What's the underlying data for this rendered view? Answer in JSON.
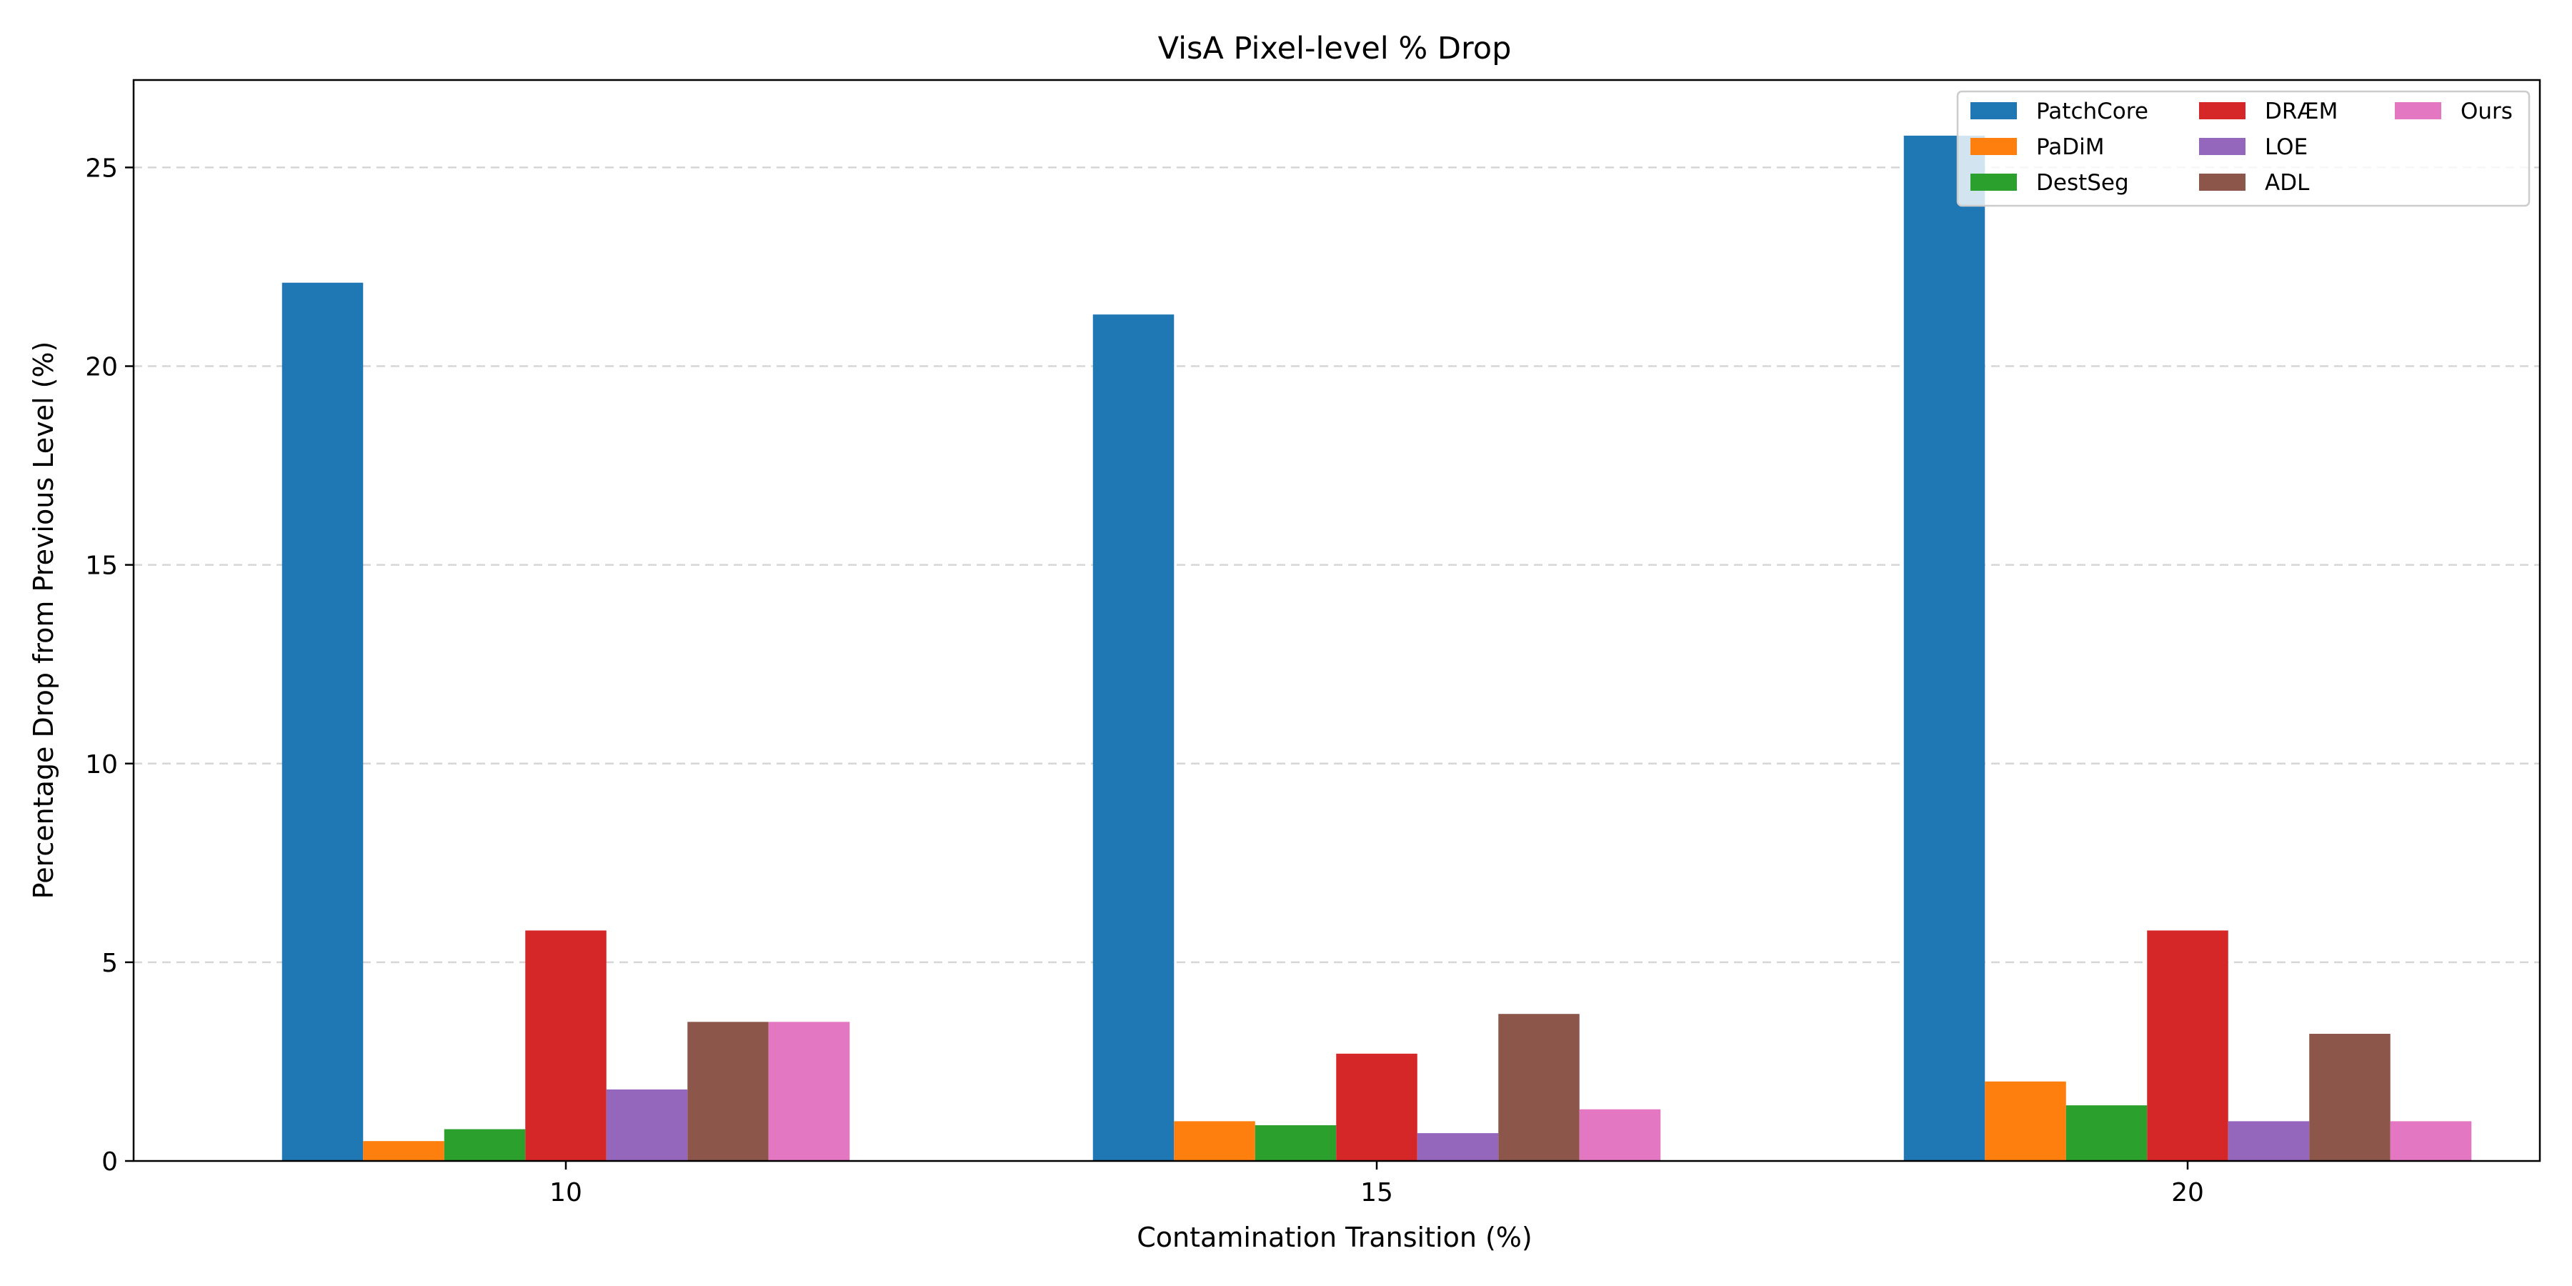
{
  "chart_data": {
    "type": "bar",
    "title": "VisA Pixel-level % Drop",
    "xlabel": "Contamination Transition (%)",
    "ylabel": "Percentage Drop from Previous Level (%)",
    "categories": [
      "10",
      "15",
      "20"
    ],
    "ylim": [
      0,
      27.2
    ],
    "yticks": [
      0,
      5,
      10,
      15,
      20,
      25
    ],
    "grid": "y-dashed",
    "legend_position": "top-right",
    "legend_columns": 3,
    "series": [
      {
        "name": "PatchCore",
        "color": "#1f77b4",
        "values": [
          22.1,
          21.3,
          25.8
        ]
      },
      {
        "name": "PaDiM",
        "color": "#ff7f0e",
        "values": [
          0.5,
          1.0,
          2.0
        ]
      },
      {
        "name": "DestSeg",
        "color": "#2ca02c",
        "values": [
          0.8,
          0.9,
          1.4
        ]
      },
      {
        "name": "DRÆM",
        "color": "#d62728",
        "values": [
          5.8,
          2.7,
          5.8
        ]
      },
      {
        "name": "LOE",
        "color": "#9467bd",
        "values": [
          1.8,
          0.7,
          1.0
        ]
      },
      {
        "name": "ADL",
        "color": "#8c564b",
        "values": [
          3.5,
          3.7,
          3.2
        ]
      },
      {
        "name": "Ours",
        "color": "#e377c2",
        "values": [
          3.5,
          1.3,
          1.0
        ]
      }
    ]
  }
}
